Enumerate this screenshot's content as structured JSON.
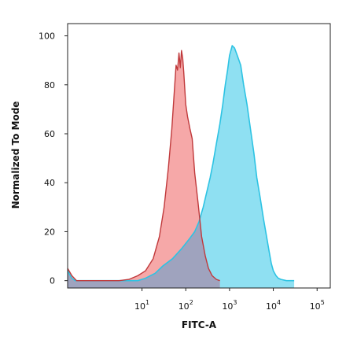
{
  "chart_data": {
    "type": "area",
    "xlabel": "FITC-A",
    "ylabel": "Normalized To Mode",
    "x_scale": "log",
    "xlim": [
      0.2,
      200000
    ],
    "ylim": [
      -3,
      105
    ],
    "yticks": [
      0,
      20,
      40,
      60,
      80,
      100
    ],
    "xticks": [
      {
        "value": 10,
        "base": "10",
        "exp": "1"
      },
      {
        "value": 100,
        "base": "10",
        "exp": "2"
      },
      {
        "value": 1000,
        "base": "10",
        "exp": "3"
      },
      {
        "value": 10000,
        "base": "10",
        "exp": "4"
      },
      {
        "value": 100000,
        "base": "10",
        "exp": "5"
      }
    ],
    "grid": false,
    "colors": {
      "red_fill": "#f5a3a3",
      "red_line": "#c0393b",
      "cyan_fill": "#8fe0f2",
      "cyan_line": "#2dc3e3",
      "overlap_fill": "#9fa3be"
    },
    "series": [
      {
        "color": "red",
        "x": [
          0.2,
          0.25,
          0.32,
          0.4,
          1,
          3,
          5,
          8,
          12,
          18,
          25,
          32,
          40,
          48,
          55,
          60,
          65,
          70,
          75,
          80,
          85,
          90,
          100,
          110,
          125,
          140,
          160,
          190,
          230,
          280,
          330,
          400,
          500,
          600
        ],
        "y": [
          5,
          2,
          0,
          0,
          0,
          0,
          0.5,
          2,
          4,
          9,
          18,
          30,
          46,
          62,
          78,
          88,
          86,
          93,
          87,
          94,
          91,
          85,
          72,
          67,
          62,
          58,
          44,
          32,
          18,
          10,
          5,
          2,
          0.5,
          0
        ]
      },
      {
        "color": "cyan",
        "x": [
          0.2,
          0.25,
          0.3,
          1,
          8,
          12,
          20,
          30,
          50,
          80,
          120,
          160,
          200,
          250,
          300,
          360,
          420,
          500,
          600,
          700,
          800,
          900,
          1000,
          1150,
          1300,
          1500,
          1800,
          2100,
          2500,
          3000,
          3600,
          4200,
          5000,
          6000,
          7000,
          8000,
          9000,
          10000,
          11500,
          13000,
          15000,
          20000,
          30000
        ],
        "y": [
          4,
          1,
          0,
          0,
          0,
          1,
          3,
          6,
          9,
          13,
          17,
          20,
          24,
          30,
          36,
          42,
          48,
          56,
          64,
          72,
          80,
          86,
          92,
          96,
          95,
          92,
          88,
          80,
          72,
          62,
          52,
          42,
          34,
          25,
          18,
          12,
          7,
          4,
          2,
          1,
          0.5,
          0,
          0
        ]
      }
    ]
  }
}
